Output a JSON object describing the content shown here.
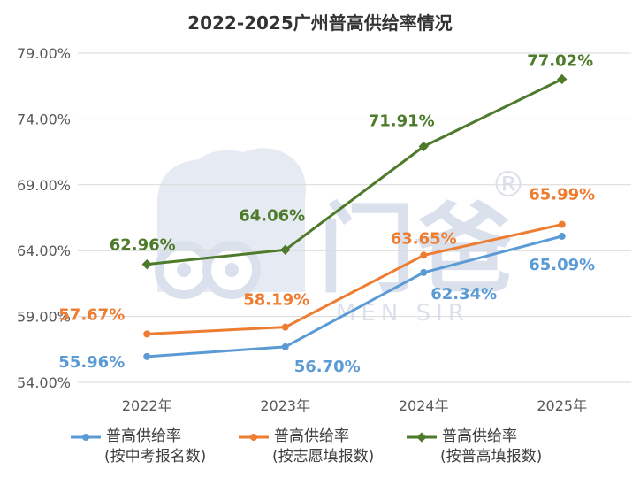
{
  "chart_data": {
    "type": "line",
    "title": "2022-2025广州普高供给率情况",
    "categories": [
      "2022年",
      "2023年",
      "2024年",
      "2025年"
    ],
    "ylim": [
      54,
      79
    ],
    "yticks": [
      54,
      59,
      64,
      69,
      74,
      79
    ],
    "ytick_labels": [
      "54.00%",
      "59.00%",
      "64.00%",
      "69.00%",
      "74.00%",
      "79.00%"
    ],
    "grid": true,
    "legend_position": "bottom",
    "series": [
      {
        "name_line1": "普高供给率",
        "name_line2": "(按中考报名数)",
        "color": "#5B9BD5",
        "values": [
          55.96,
          56.7,
          62.34,
          65.09
        ],
        "labels": [
          "55.96%",
          "56.70%",
          "62.34%",
          "65.09%"
        ]
      },
      {
        "name_line1": "普高供给率",
        "name_line2": "(按志愿填报数)",
        "color": "#ED7D31",
        "values": [
          57.67,
          58.19,
          63.65,
          65.99
        ],
        "labels": [
          "57.67%",
          "58.19%",
          "63.65%",
          "65.99%"
        ]
      },
      {
        "name_line1": "普高供给率",
        "name_line2": "(按普高填报数)",
        "color": "#4E7A2B",
        "values": [
          62.96,
          64.06,
          71.91,
          77.02
        ],
        "labels": [
          "62.96%",
          "64.06%",
          "71.91%",
          "77.02%"
        ]
      }
    ]
  },
  "watermark": {
    "text": "门爸",
    "subtext": "MEN SIR",
    "mark": "®"
  }
}
